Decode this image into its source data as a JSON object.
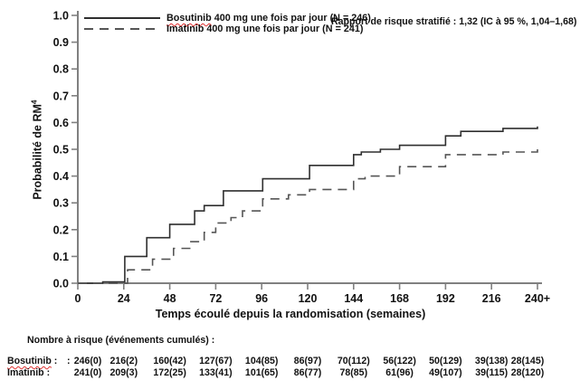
{
  "figure": {
    "legend": {
      "items": [
        {
          "word": "Bosutinib",
          "rest": " 400 mg une fois par jour (N = 246)",
          "style": "solid"
        },
        {
          "word": "Imatinib",
          "rest": " 400 mg une fois par jour (N = 241)",
          "style": "dashed"
        }
      ]
    },
    "annotation": "Rapport de risque stratifié : 1,32 (IC à 95 %, 1,04–1,68)",
    "ylabel_main": "Probabilité de RM",
    "ylabel_sup": "4",
    "xlabel": "Temps écoulé depuis la randomisation (semaines)"
  },
  "chart_data": {
    "type": "line",
    "subtype": "kaplan-meier-step",
    "title": "",
    "xlabel": "Temps écoulé depuis la randomisation (semaines)",
    "ylabel": "Probabilité de RM4",
    "xlim": [
      0,
      246
    ],
    "ylim": [
      0,
      1.0
    ],
    "grid": false,
    "legend_position": "top-left",
    "annotation": "Rapport de risque stratifié : 1,32 (IC à 95 %, 1,04–1,68)",
    "x_ticks": [
      0,
      24,
      48,
      72,
      96,
      120,
      144,
      168,
      192,
      216,
      240
    ],
    "x_tick_labels": [
      "0",
      "24",
      "48",
      "72",
      "96",
      "120",
      "144",
      "168",
      "192",
      "216",
      "240+"
    ],
    "y_ticks": [
      0,
      0.1,
      0.2,
      0.3,
      0.4,
      0.5,
      0.6,
      0.7,
      0.8,
      0.9,
      1.0
    ],
    "y_tick_labels": [
      "0.0",
      "0.1",
      "0.2",
      "0.3",
      "0.4",
      "0.5",
      "0.6",
      "0.7",
      "0.8",
      "0.9",
      "1.0"
    ],
    "axis_color": "#808080",
    "series": [
      {
        "name": "Bosutinib 400 mg une fois par jour (N = 246)",
        "line_style": "solid",
        "color": "#2f2f2f",
        "steps": [
          [
            0,
            0
          ],
          [
            13,
            0.005
          ],
          [
            24.5,
            0.1
          ],
          [
            36,
            0.17
          ],
          [
            48,
            0.22
          ],
          [
            61,
            0.27
          ],
          [
            66,
            0.29
          ],
          [
            76,
            0.345
          ],
          [
            96.5,
            0.39
          ],
          [
            121,
            0.44
          ],
          [
            144,
            0.48
          ],
          [
            148,
            0.49
          ],
          [
            158,
            0.5
          ],
          [
            168,
            0.515
          ],
          [
            192,
            0.55
          ],
          [
            200,
            0.567
          ],
          [
            222,
            0.578
          ],
          [
            240,
            0.585
          ]
        ]
      },
      {
        "name": "Imatinib 400 mg une fois par jour (N = 241)",
        "line_style": "dashed",
        "color": "#555555",
        "steps": [
          [
            0,
            0
          ],
          [
            26,
            0.05
          ],
          [
            39,
            0.09
          ],
          [
            50,
            0.13
          ],
          [
            59,
            0.155
          ],
          [
            66,
            0.19
          ],
          [
            72,
            0.225
          ],
          [
            80,
            0.245
          ],
          [
            86,
            0.27
          ],
          [
            96.5,
            0.315
          ],
          [
            110,
            0.33
          ],
          [
            121,
            0.35
          ],
          [
            144,
            0.39
          ],
          [
            150,
            0.4
          ],
          [
            168,
            0.435
          ],
          [
            192,
            0.48
          ],
          [
            222,
            0.49
          ],
          [
            240,
            0.5
          ]
        ]
      }
    ]
  },
  "risk_table": {
    "header": "Nombre à risque (événements cumulés) :",
    "rows": [
      {
        "word": "Bosutinib",
        "suffix": " :",
        "stray": ":",
        "values": [
          "246(0)",
          "216(2)",
          "160(42)",
          "127(67)",
          "104(85)",
          "86(97)",
          "70(112)",
          "56(122)",
          "50(129)",
          "39(138)",
          "28(145)"
        ]
      },
      {
        "word": "Imatinib",
        "suffix": " :",
        "stray": "",
        "values": [
          "241(0)",
          "209(3)",
          "172(25)",
          "133(41)",
          "101(65)",
          "86(77)",
          "78(85)",
          "61(96)",
          "49(107)",
          "39(115)",
          "28(120)"
        ]
      }
    ]
  }
}
